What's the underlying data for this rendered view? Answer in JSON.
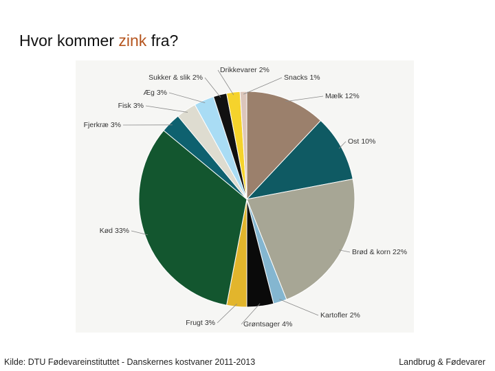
{
  "header": {
    "title_parts": [
      "Hvor kommer",
      "zink",
      "fra?"
    ]
  },
  "chart_data": {
    "type": "pie",
    "categories": [
      "Mælk",
      "Ost",
      "Brød & korn",
      "Kartofler",
      "Grøntsager",
      "Frugt",
      "Kød",
      "Fjerkræ",
      "Fisk",
      "Æg",
      "Sukker & slik",
      "Drikkevarer",
      "Snacks"
    ],
    "values": [
      12,
      10,
      22,
      2,
      4,
      3,
      33,
      3,
      3,
      3,
      2,
      2,
      1
    ],
    "value_labels": [
      "12%",
      "10%",
      "22%",
      "2%",
      "4%",
      "3%",
      "33%",
      "3%",
      "3%",
      "3%",
      "2%",
      "2%",
      "1%"
    ],
    "colors": [
      "#9b806c",
      "#0f5a63",
      "#a7a695",
      "#84b6d0",
      "#0a0a0a",
      "#e2b52c",
      "#13562f",
      "#0e616f",
      "#dedcd0",
      "#a9dcf4",
      "#111111",
      "#f5d32c",
      "#dcc6bb"
    ]
  },
  "footer": {
    "source": "Kilde: DTU Fødevareinstituttet - Danskernes kostvaner 2011-2013",
    "brand": "Landbrug & Fødevarer"
  }
}
